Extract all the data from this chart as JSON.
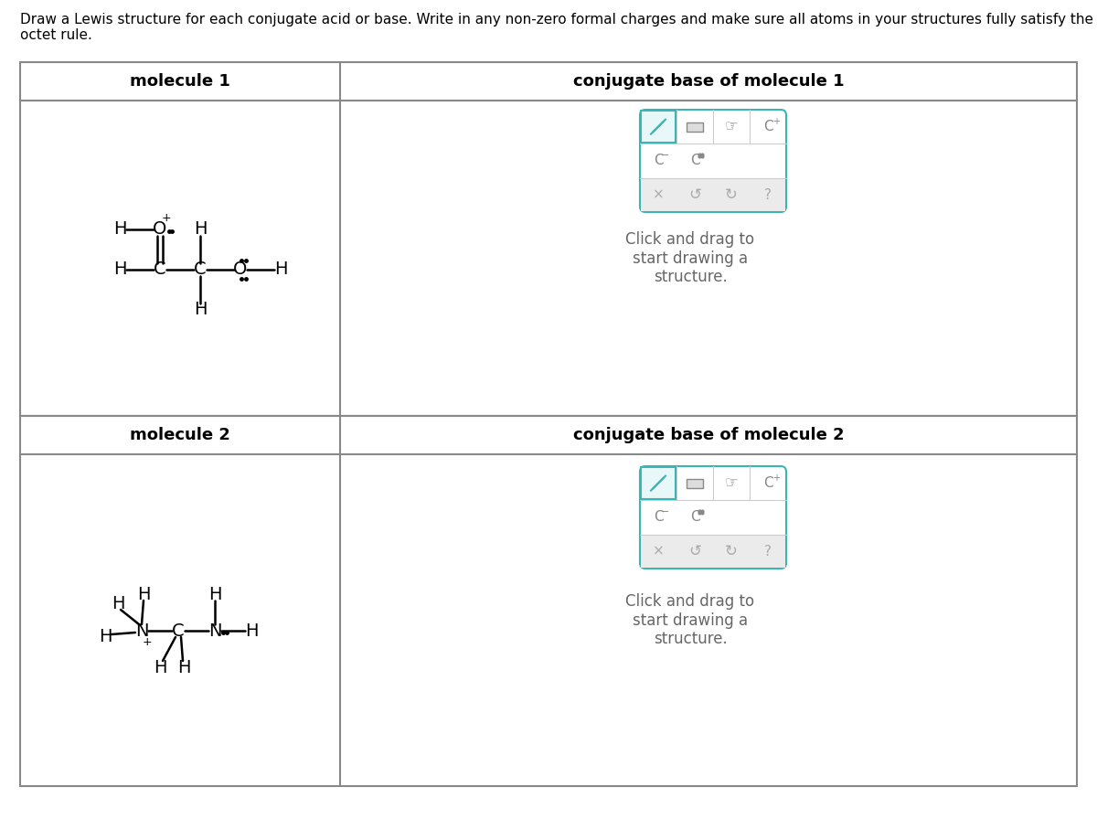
{
  "title_text": "Draw a Lewis structure for each conjugate acid or base. Write in any non-zero formal charges and make sure all atoms in your structures fully satisfy the\noctet rule.",
  "bg_color": "#ffffff",
  "text_color": "#000000",
  "mol1_header": "molecule 1",
  "mol2_header": "conjugate base of molecule 1",
  "mol3_header": "molecule 2",
  "mol4_header": "conjugate base of molecule 2",
  "click_drag_text": "Click and drag to\nstart drawing a\nstructure.",
  "teal_color": "#3ab5b5",
  "gray_bg": "#ebebeb",
  "gray_text": "#888888",
  "panel_border": "#888888",
  "toolbar_border": "#3ab5b5"
}
